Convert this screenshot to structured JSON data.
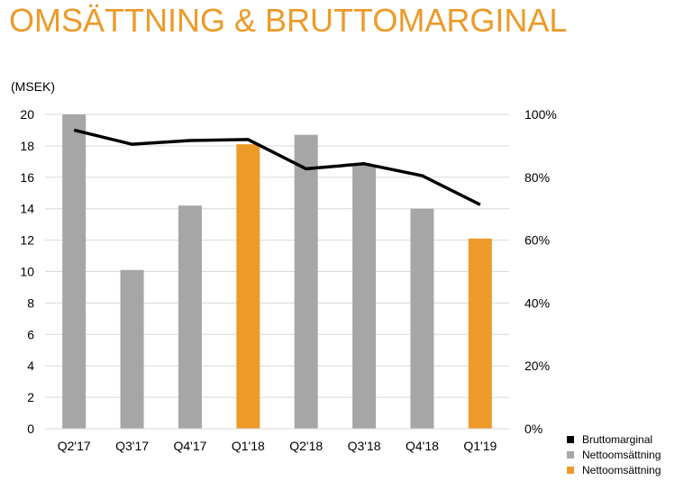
{
  "title": "OMSÄTTNING & BRUTTOMARGINAL",
  "chart_data": {
    "type": "bar",
    "unit_label": "(MSEK)",
    "categories": [
      "Q2'17",
      "Q3'17",
      "Q4'17",
      "Q1'18",
      "Q2'18",
      "Q3'18",
      "Q4'18",
      "Q1'19"
    ],
    "series": [
      {
        "name": "Nettoomsättning",
        "type": "bar",
        "color": "#A6A6A6",
        "values": [
          20.0,
          10.1,
          14.2,
          null,
          18.7,
          16.8,
          14.0,
          null
        ]
      },
      {
        "name": "Nettoomsättning",
        "type": "bar",
        "color": "#ED9A28",
        "values": [
          null,
          null,
          null,
          18.1,
          null,
          null,
          null,
          12.1
        ]
      },
      {
        "name": "Bruttomarginal",
        "type": "line",
        "axis": "right",
        "color": "#000000",
        "values": [
          95,
          90.5,
          91.7,
          92,
          82.7,
          84.3,
          80.5,
          71.3
        ]
      }
    ],
    "y_left": {
      "min": 0,
      "max": 20,
      "ticks": [
        "0",
        "2",
        "4",
        "6",
        "8",
        "10",
        "12",
        "14",
        "16",
        "18",
        "20"
      ]
    },
    "y_right": {
      "min": 0,
      "max": 100,
      "ticks": [
        "0%",
        "20%",
        "40%",
        "60%",
        "80%",
        "100%"
      ]
    },
    "grid": true,
    "legend_position": "bottom-right"
  }
}
